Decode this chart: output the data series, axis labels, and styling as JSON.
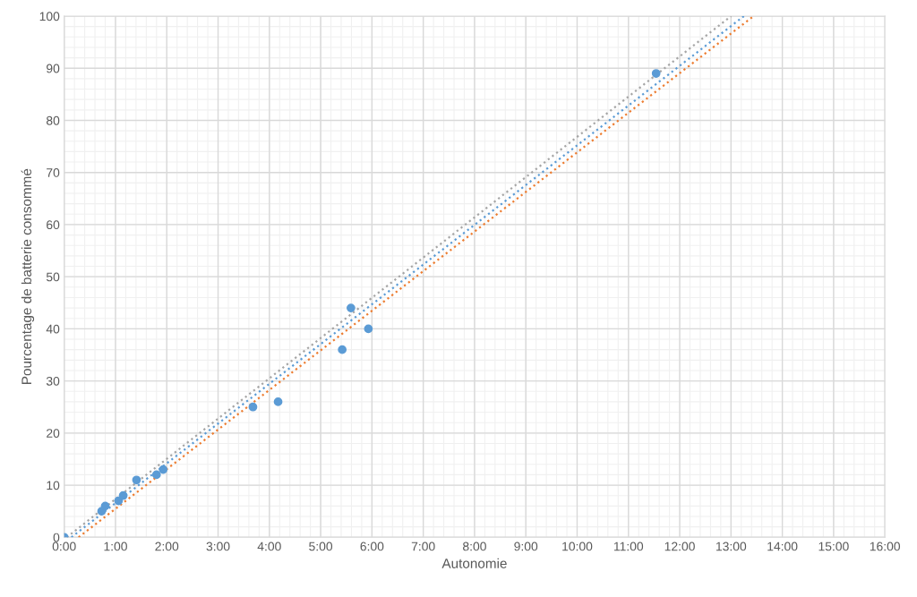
{
  "chart_data": {
    "type": "scatter",
    "xlabel": "Autonomie",
    "ylabel": "Pourcentage de batterie consommé",
    "xlim": [
      0,
      16
    ],
    "ylim": [
      0,
      100
    ],
    "xticks": [
      {
        "value": 0,
        "label": "0:00"
      },
      {
        "value": 1,
        "label": "1:00"
      },
      {
        "value": 2,
        "label": "2:00"
      },
      {
        "value": 3,
        "label": "3:00"
      },
      {
        "value": 4,
        "label": "4:00"
      },
      {
        "value": 5,
        "label": "5:00"
      },
      {
        "value": 6,
        "label": "6:00"
      },
      {
        "value": 7,
        "label": "7:00"
      },
      {
        "value": 8,
        "label": "8:00"
      },
      {
        "value": 9,
        "label": "9:00"
      },
      {
        "value": 10,
        "label": "10:00"
      },
      {
        "value": 11,
        "label": "11:00"
      },
      {
        "value": 12,
        "label": "12:00"
      },
      {
        "value": 13,
        "label": "13:00"
      },
      {
        "value": 14,
        "label": "14:00"
      },
      {
        "value": 15,
        "label": "15:00"
      },
      {
        "value": 16,
        "label": "16:00"
      }
    ],
    "yticks": [
      0,
      10,
      20,
      30,
      40,
      50,
      60,
      70,
      80,
      90,
      100
    ],
    "grid": true,
    "legend": false,
    "series": [
      {
        "color": "#5b9bd5",
        "marker": "circle",
        "x": [
          0,
          0.73,
          0.8,
          1.06,
          1.15,
          1.41,
          1.8,
          1.93,
          3.68,
          4.17,
          5.42,
          5.59,
          5.93,
          11.54
        ],
        "values": [
          0,
          5,
          6,
          7,
          8,
          11,
          12,
          13,
          25,
          26,
          36,
          44,
          40,
          89
        ]
      },
      {
        "type": "line",
        "color": "#a5a5a5",
        "line_style": "dotted",
        "marker": "none",
        "x": [
          0.05,
          13.0
        ],
        "values": [
          0,
          100
        ]
      },
      {
        "type": "line",
        "color": "#5b9bd5",
        "line_style": "dotted",
        "marker": "none",
        "x": [
          0.14,
          13.25
        ],
        "values": [
          0,
          100
        ]
      },
      {
        "type": "line",
        "color": "#ed7d31",
        "line_style": "dotted",
        "marker": "none",
        "x": [
          0.28,
          13.44
        ],
        "values": [
          0,
          100
        ]
      }
    ]
  }
}
